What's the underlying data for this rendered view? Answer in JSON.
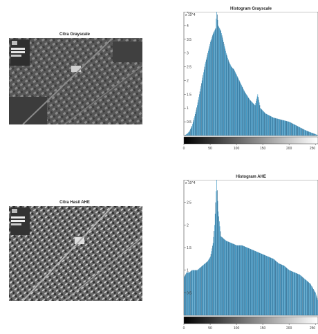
{
  "figure": {
    "top_image_title": "Citra Grayscale",
    "bottom_image_title": "Citra Hasil AHE"
  },
  "colors": {
    "bar": "#2f8fc0",
    "bar_dark": "#16557c",
    "axis": "#444444"
  },
  "chart_data": [
    {
      "type": "bar",
      "title": "Histogram Grayscale",
      "xlabel": "",
      "ylabel": "",
      "y_exponent_label": "x 10^4",
      "xlim": [
        0,
        255
      ],
      "ylim": [
        0,
        4.5
      ],
      "x_ticks": [
        "0",
        "50",
        "100",
        "150",
        "200",
        "250"
      ],
      "y_ticks": [
        "0.5",
        "1",
        "1.5",
        "2",
        "2.5",
        "3",
        "3.5",
        "4",
        "4.5"
      ],
      "grayscale_bar": true,
      "x": [
        0,
        5,
        10,
        15,
        20,
        25,
        30,
        35,
        40,
        45,
        50,
        55,
        60,
        62,
        65,
        70,
        75,
        80,
        85,
        90,
        95,
        100,
        105,
        110,
        115,
        120,
        125,
        130,
        135,
        140,
        145,
        150,
        155,
        160,
        170,
        180,
        190,
        200,
        210,
        220,
        230,
        240,
        250,
        255
      ],
      "values": [
        0.0,
        0.05,
        0.15,
        0.35,
        0.7,
        1.1,
        1.6,
        2.1,
        2.6,
        3.0,
        3.4,
        3.7,
        3.9,
        4.6,
        4.0,
        3.8,
        3.4,
        3.0,
        2.7,
        2.5,
        2.4,
        2.2,
        2.0,
        1.8,
        1.6,
        1.45,
        1.3,
        1.2,
        1.1,
        1.5,
        1.0,
        0.9,
        0.8,
        0.75,
        0.65,
        0.6,
        0.55,
        0.5,
        0.4,
        0.3,
        0.2,
        0.12,
        0.05,
        0.0
      ]
    },
    {
      "type": "bar",
      "title": "Histogram AHE",
      "xlabel": "",
      "ylabel": "",
      "y_exponent_label": "x 10^4",
      "xlim": [
        0,
        255
      ],
      "ylim": [
        0,
        3
      ],
      "x_ticks": [
        "0",
        "50",
        "100",
        "150",
        "200",
        "250"
      ],
      "y_ticks": [
        "0.5",
        "1",
        "1.5",
        "2",
        "2.5",
        "3"
      ],
      "grayscale_bar": true,
      "x": [
        0,
        5,
        10,
        15,
        20,
        25,
        30,
        35,
        40,
        45,
        50,
        55,
        58,
        60,
        62,
        65,
        70,
        75,
        80,
        90,
        100,
        110,
        120,
        130,
        140,
        150,
        160,
        170,
        180,
        190,
        200,
        210,
        220,
        230,
        240,
        245,
        250,
        255
      ],
      "values": [
        0.85,
        0.95,
        0.95,
        1.0,
        1.0,
        1.0,
        1.05,
        1.1,
        1.15,
        1.2,
        1.3,
        1.6,
        2.0,
        2.5,
        3.0,
        2.3,
        1.75,
        1.7,
        1.65,
        1.6,
        1.55,
        1.55,
        1.5,
        1.45,
        1.4,
        1.35,
        1.3,
        1.25,
        1.15,
        1.1,
        1.0,
        0.95,
        0.9,
        0.8,
        0.7,
        0.6,
        0.5,
        0.3
      ]
    }
  ]
}
